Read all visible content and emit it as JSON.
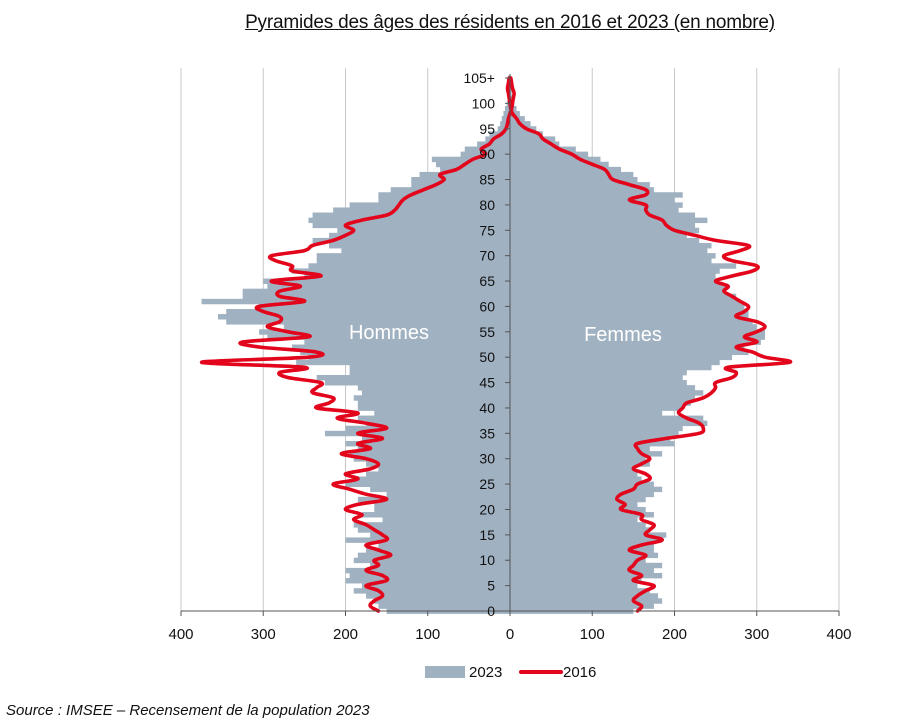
{
  "chart_data": {
    "type": "bar",
    "subtype": "population-pyramid",
    "title": "Pyramides des âges des résidents en 2016 et 2023 (en nombre)",
    "source": "Source : IMSEE – Recensement de la population 2023",
    "left_label": "Hommes",
    "right_label": "Femmes",
    "xlim": [
      -400,
      400
    ],
    "x_tick_values": [
      -400,
      -300,
      -200,
      -100,
      0,
      100,
      200,
      300,
      400
    ],
    "x_tick_labels": [
      "400",
      "300",
      "200",
      "100",
      "0",
      "100",
      "200",
      "300",
      "400"
    ],
    "y_tick_values": [
      0,
      5,
      10,
      15,
      20,
      25,
      30,
      35,
      40,
      45,
      50,
      55,
      60,
      65,
      70,
      75,
      80,
      85,
      90,
      95,
      100,
      105
    ],
    "y_tick_labels": [
      "0",
      "5",
      "10",
      "15",
      "20",
      "25",
      "30",
      "35",
      "40",
      "45",
      "50",
      "55",
      "60",
      "65",
      "70",
      "75",
      "80",
      "85",
      "90",
      "95",
      "100",
      "105+"
    ],
    "grid": "vertical",
    "legend": "bottom",
    "colors": {
      "bars_2023": "#a0b1c1",
      "line_2016": "#e3051b",
      "grid": "#c8c8c8",
      "axis": "#555555"
    },
    "series": [
      {
        "name": "2023",
        "kind": "bar",
        "ages": [
          0,
          1,
          2,
          3,
          4,
          5,
          6,
          7,
          8,
          9,
          10,
          11,
          12,
          13,
          14,
          15,
          16,
          17,
          18,
          19,
          20,
          21,
          22,
          23,
          24,
          25,
          26,
          27,
          28,
          29,
          30,
          31,
          32,
          33,
          34,
          35,
          36,
          37,
          38,
          39,
          40,
          41,
          42,
          43,
          44,
          45,
          46,
          47,
          48,
          49,
          50,
          51,
          52,
          53,
          54,
          55,
          56,
          57,
          58,
          59,
          60,
          61,
          62,
          63,
          64,
          65,
          66,
          67,
          68,
          69,
          70,
          71,
          72,
          73,
          74,
          75,
          76,
          77,
          78,
          79,
          80,
          81,
          82,
          83,
          84,
          85,
          86,
          87,
          88,
          89,
          90,
          91,
          92,
          93,
          94,
          95,
          96,
          97,
          98,
          99,
          100,
          101,
          102,
          103,
          104,
          105
        ],
        "male": [
          150,
          160,
          165,
          175,
          190,
          180,
          200,
          195,
          200,
          170,
          190,
          185,
          175,
          160,
          200,
          170,
          185,
          190,
          155,
          180,
          165,
          165,
          185,
          150,
          170,
          200,
          190,
          175,
          160,
          175,
          190,
          195,
          185,
          200,
          180,
          225,
          200,
          175,
          185,
          165,
          185,
          185,
          190,
          180,
          185,
          225,
          235,
          195,
          195,
          260,
          245,
          255,
          265,
          250,
          295,
          305,
          275,
          345,
          355,
          345,
          305,
          375,
          325,
          325,
          295,
          300,
          250,
          265,
          245,
          235,
          235,
          205,
          220,
          240,
          220,
          210,
          240,
          245,
          240,
          215,
          195,
          160,
          160,
          145,
          120,
          120,
          110,
          85,
          90,
          95,
          60,
          55,
          40,
          30,
          25,
          15,
          12,
          10,
          8,
          6,
          4,
          3,
          2,
          2,
          1,
          2
        ],
        "female": [
          150,
          175,
          185,
          180,
          170,
          155,
          160,
          185,
          175,
          185,
          165,
          180,
          175,
          175,
          185,
          190,
          170,
          165,
          155,
          175,
          165,
          155,
          165,
          175,
          185,
          175,
          160,
          155,
          150,
          170,
          165,
          185,
          170,
          200,
          195,
          205,
          210,
          240,
          235,
          185,
          210,
          220,
          225,
          235,
          225,
          215,
          210,
          215,
          245,
          255,
          270,
          290,
          285,
          305,
          310,
          310,
          300,
          295,
          290,
          290,
          285,
          280,
          275,
          260,
          265,
          250,
          250,
          255,
          275,
          245,
          250,
          240,
          245,
          230,
          215,
          230,
          225,
          240,
          225,
          205,
          210,
          200,
          210,
          175,
          170,
          155,
          150,
          135,
          120,
          110,
          95,
          80,
          60,
          55,
          40,
          32,
          25,
          18,
          12,
          8,
          5,
          3,
          2,
          2,
          1,
          1
        ]
      },
      {
        "name": "2016",
        "kind": "line",
        "ages": [
          0,
          1,
          2,
          3,
          4,
          5,
          6,
          7,
          8,
          9,
          10,
          11,
          12,
          13,
          14,
          15,
          16,
          17,
          18,
          19,
          20,
          21,
          22,
          23,
          24,
          25,
          26,
          27,
          28,
          29,
          30,
          31,
          32,
          33,
          34,
          35,
          36,
          37,
          38,
          39,
          40,
          41,
          42,
          43,
          44,
          45,
          46,
          47,
          48,
          49,
          50,
          51,
          52,
          53,
          54,
          55,
          56,
          57,
          58,
          59,
          60,
          61,
          62,
          63,
          64,
          65,
          66,
          67,
          68,
          69,
          70,
          71,
          72,
          73,
          74,
          75,
          76,
          77,
          78,
          79,
          80,
          81,
          82,
          83,
          84,
          85,
          86,
          87,
          88,
          89,
          90,
          91,
          92,
          93,
          94,
          95,
          96,
          97,
          98,
          99,
          100,
          101,
          102,
          103,
          104,
          105
        ],
        "male": [
          160,
          170,
          165,
          155,
          160,
          175,
          150,
          155,
          175,
          160,
          165,
          145,
          160,
          175,
          150,
          155,
          165,
          175,
          190,
          180,
          200,
          185,
          150,
          175,
          195,
          215,
          185,
          200,
          170,
          160,
          175,
          205,
          170,
          185,
          155,
          185,
          150,
          175,
          210,
          185,
          235,
          220,
          215,
          240,
          235,
          230,
          270,
          280,
          250,
          375,
          245,
          235,
          305,
          325,
          245,
          270,
          295,
          280,
          280,
          300,
          305,
          250,
          280,
          280,
          255,
          290,
          230,
          265,
          265,
          285,
          290,
          250,
          240,
          215,
          200,
          190,
          200,
          180,
          150,
          140,
          135,
          130,
          120,
          105,
          90,
          80,
          85,
          65,
          55,
          45,
          30,
          35,
          25,
          20,
          10,
          5,
          3,
          2,
          0,
          -2,
          -3,
          -4,
          -5,
          -3,
          -2,
          -1
        ],
        "female": [
          155,
          160,
          150,
          155,
          165,
          175,
          150,
          160,
          145,
          150,
          155,
          165,
          145,
          160,
          185,
          165,
          170,
          175,
          160,
          160,
          135,
          140,
          130,
          135,
          150,
          155,
          170,
          165,
          150,
          160,
          170,
          160,
          155,
          155,
          190,
          230,
          235,
          230,
          215,
          205,
          210,
          215,
          235,
          245,
          250,
          250,
          270,
          275,
          265,
          340,
          310,
          295,
          275,
          300,
          285,
          300,
          310,
          300,
          275,
          285,
          290,
          280,
          270,
          260,
          265,
          250,
          270,
          295,
          300,
          270,
          260,
          280,
          290,
          250,
          225,
          200,
          190,
          185,
          170,
          165,
          165,
          145,
          165,
          165,
          145,
          125,
          120,
          115,
          100,
          85,
          75,
          60,
          50,
          40,
          35,
          20,
          12,
          8,
          3,
          1,
          0,
          -1,
          -2,
          -3,
          -2,
          -1
        ]
      }
    ]
  }
}
